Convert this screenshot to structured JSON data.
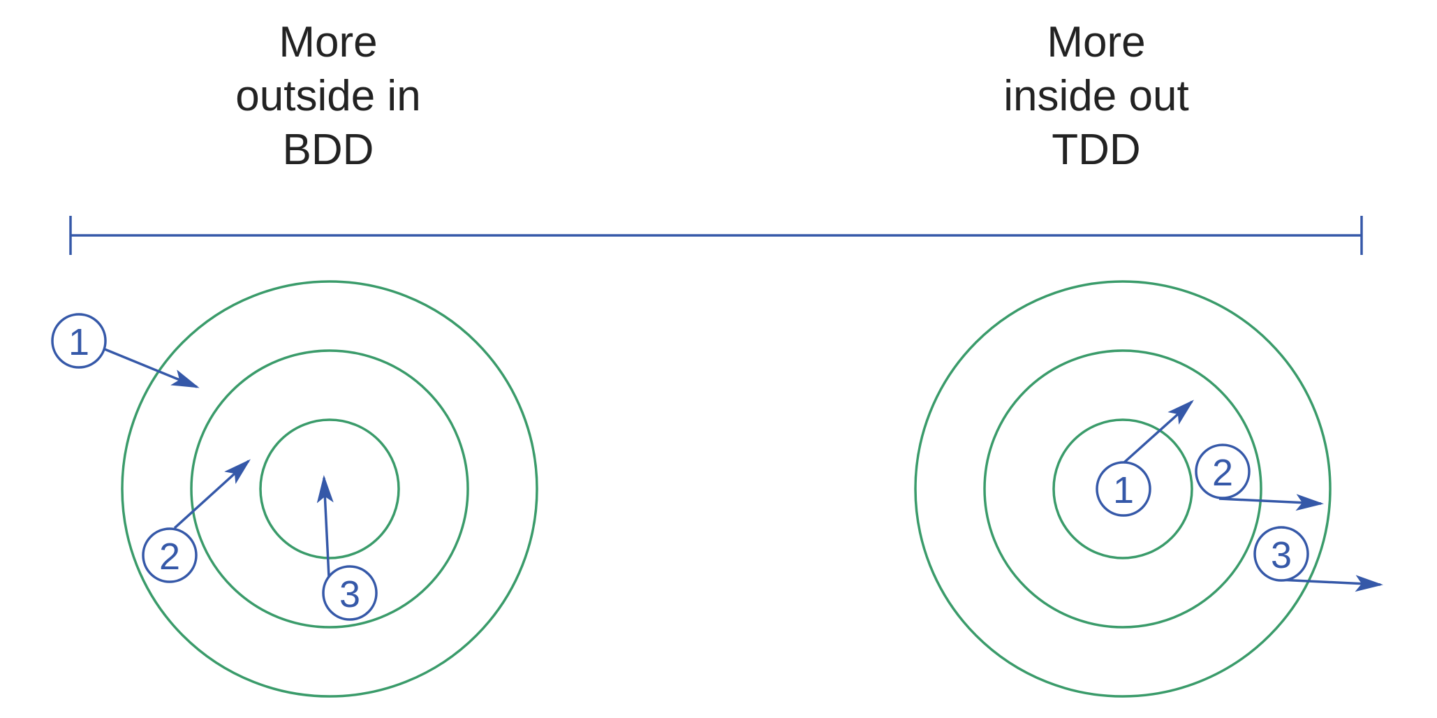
{
  "colors": {
    "ring": "#3a9b6a",
    "accent": "#3558a8",
    "text": "#222222",
    "background": "#ffffff"
  },
  "left": {
    "heading": [
      "More",
      "outside in",
      "BDD"
    ],
    "steps": [
      "1",
      "2",
      "3"
    ]
  },
  "right": {
    "heading": [
      "More",
      "inside out",
      "TDD"
    ],
    "steps": [
      "1",
      "2",
      "3"
    ]
  }
}
